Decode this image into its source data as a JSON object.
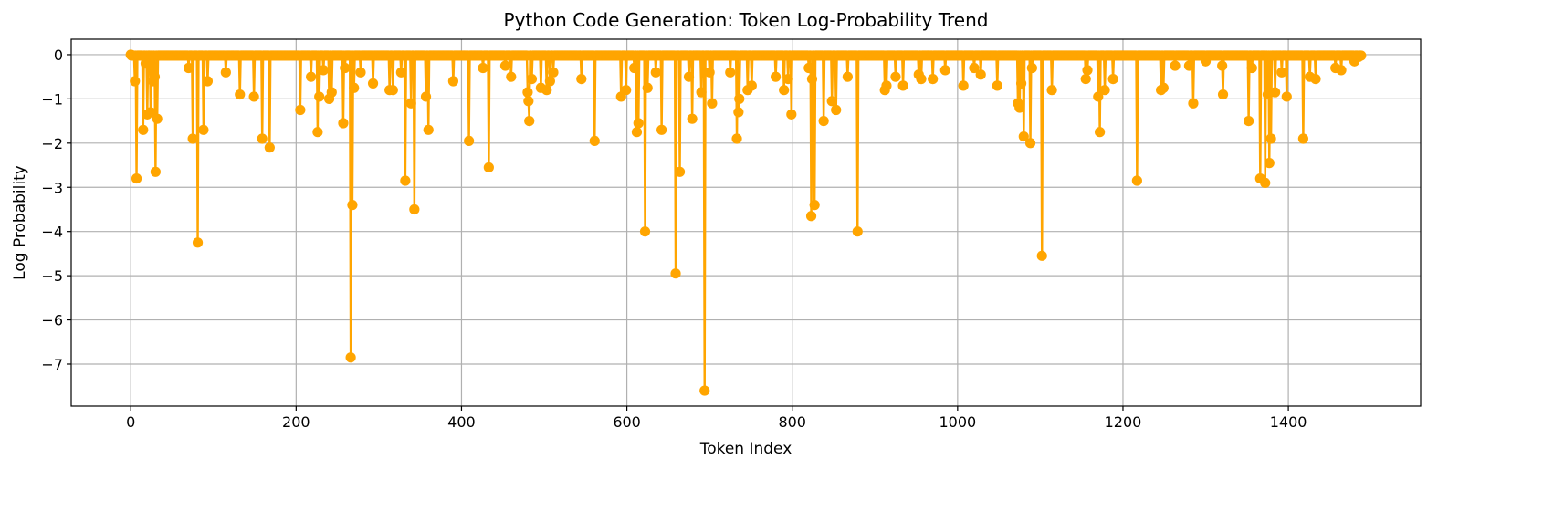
{
  "chart_data": {
    "type": "line",
    "title": "Python Code Generation: Token Log-Probability Trend",
    "xlabel": "Token Index",
    "ylabel": "Log Probability",
    "xlim": [
      -72,
      1560
    ],
    "ylim": [
      -7.95,
      0.35
    ],
    "xticks": [
      0,
      200,
      400,
      600,
      800,
      1000,
      1200,
      1400
    ],
    "yticks": [
      0,
      -1,
      -2,
      -3,
      -4,
      -5,
      -6,
      -7
    ],
    "xtick_labels": [
      "0",
      "200",
      "400",
      "600",
      "800",
      "1000",
      "1200",
      "1400"
    ],
    "ytick_labels": [
      "0",
      "−1",
      "−2",
      "−3",
      "−4",
      "−5",
      "−6",
      "−7"
    ],
    "grid": true,
    "n_tokens": 1489,
    "baseline": -0.02,
    "markers": "circle",
    "series": [
      {
        "color": "#FFA500",
        "dips": [
          [
            5,
            -0.6
          ],
          [
            7,
            -2.8
          ],
          [
            15,
            -1.7
          ],
          [
            18,
            -0.2
          ],
          [
            20,
            -1.35
          ],
          [
            24,
            -1.3
          ],
          [
            27,
            -0.6
          ],
          [
            29,
            -0.5
          ],
          [
            30,
            -2.65
          ],
          [
            32,
            -1.45
          ],
          [
            70,
            -0.3
          ],
          [
            75,
            -1.9
          ],
          [
            81,
            -4.25
          ],
          [
            88,
            -1.7
          ],
          [
            93,
            -0.6
          ],
          [
            115,
            -0.4
          ],
          [
            132,
            -0.9
          ],
          [
            149,
            -0.95
          ],
          [
            159,
            -1.9
          ],
          [
            168,
            -2.1
          ],
          [
            205,
            -1.25
          ],
          [
            218,
            -0.5
          ],
          [
            226,
            -1.75
          ],
          [
            228,
            -0.95
          ],
          [
            233,
            -0.35
          ],
          [
            240,
            -1.0
          ],
          [
            243,
            -0.85
          ],
          [
            257,
            -1.55
          ],
          [
            259,
            -0.3
          ],
          [
            266,
            -6.85
          ],
          [
            268,
            -3.4
          ],
          [
            270,
            -0.75
          ],
          [
            278,
            -0.4
          ],
          [
            293,
            -0.65
          ],
          [
            313,
            -0.8
          ],
          [
            317,
            -0.8
          ],
          [
            327,
            -0.4
          ],
          [
            332,
            -2.85
          ],
          [
            339,
            -1.1
          ],
          [
            343,
            -3.5
          ],
          [
            357,
            -0.95
          ],
          [
            360,
            -1.7
          ],
          [
            390,
            -0.6
          ],
          [
            409,
            -1.95
          ],
          [
            426,
            -0.3
          ],
          [
            433,
            -2.55
          ],
          [
            453,
            -0.25
          ],
          [
            460,
            -0.5
          ],
          [
            480,
            -0.85
          ],
          [
            481,
            -1.05
          ],
          [
            482,
            -1.5
          ],
          [
            485,
            -0.55
          ],
          [
            496,
            -0.75
          ],
          [
            503,
            -0.8
          ],
          [
            507,
            -0.6
          ],
          [
            511,
            -0.4
          ],
          [
            545,
            -0.55
          ],
          [
            561,
            -1.95
          ],
          [
            593,
            -0.95
          ],
          [
            599,
            -0.8
          ],
          [
            609,
            -0.3
          ],
          [
            612,
            -1.75
          ],
          [
            614,
            -1.55
          ],
          [
            622,
            -4.0
          ],
          [
            625,
            -0.75
          ],
          [
            635,
            -0.4
          ],
          [
            642,
            -1.7
          ],
          [
            659,
            -4.95
          ],
          [
            664,
            -2.65
          ],
          [
            675,
            -0.5
          ],
          [
            679,
            -1.45
          ],
          [
            690,
            -0.85
          ],
          [
            694,
            -7.6
          ],
          [
            700,
            -0.4
          ],
          [
            703,
            -1.1
          ],
          [
            725,
            -0.4
          ],
          [
            733,
            -1.9
          ],
          [
            735,
            -1.3
          ],
          [
            736,
            -1.0
          ],
          [
            746,
            -0.8
          ],
          [
            751,
            -0.7
          ],
          [
            780,
            -0.5
          ],
          [
            790,
            -0.8
          ],
          [
            795,
            -0.55
          ],
          [
            799,
            -1.35
          ],
          [
            820,
            -0.3
          ],
          [
            823,
            -3.65
          ],
          [
            824,
            -0.55
          ],
          [
            827,
            -3.4
          ],
          [
            838,
            -1.5
          ],
          [
            848,
            -1.05
          ],
          [
            853,
            -1.25
          ],
          [
            867,
            -0.5
          ],
          [
            879,
            -4.0
          ],
          [
            912,
            -0.8
          ],
          [
            914,
            -0.7
          ],
          [
            925,
            -0.5
          ],
          [
            934,
            -0.7
          ],
          [
            953,
            -0.45
          ],
          [
            956,
            -0.55
          ],
          [
            970,
            -0.55
          ],
          [
            985,
            -0.35
          ],
          [
            1007,
            -0.7
          ],
          [
            1020,
            -0.3
          ],
          [
            1028,
            -0.45
          ],
          [
            1048,
            -0.7
          ],
          [
            1073,
            -1.1
          ],
          [
            1075,
            -1.2
          ],
          [
            1077,
            -0.65
          ],
          [
            1080,
            -1.85
          ],
          [
            1088,
            -2.0
          ],
          [
            1090,
            -0.3
          ],
          [
            1102,
            -4.55
          ],
          [
            1114,
            -0.8
          ],
          [
            1155,
            -0.55
          ],
          [
            1157,
            -0.35
          ],
          [
            1170,
            -0.95
          ],
          [
            1172,
            -1.75
          ],
          [
            1178,
            -0.8
          ],
          [
            1188,
            -0.55
          ],
          [
            1217,
            -2.85
          ],
          [
            1246,
            -0.8
          ],
          [
            1249,
            -0.75
          ],
          [
            1263,
            -0.25
          ],
          [
            1280,
            -0.25
          ],
          [
            1285,
            -1.1
          ],
          [
            1300,
            -0.15
          ],
          [
            1320,
            -0.25
          ],
          [
            1321,
            -0.9
          ],
          [
            1352,
            -1.5
          ],
          [
            1356,
            -0.3
          ],
          [
            1366,
            -2.8
          ],
          [
            1372,
            -2.9
          ],
          [
            1375,
            -0.9
          ],
          [
            1377,
            -2.45
          ],
          [
            1379,
            -1.9
          ],
          [
            1384,
            -0.85
          ],
          [
            1392,
            -0.4
          ],
          [
            1398,
            -0.95
          ],
          [
            1418,
            -1.9
          ],
          [
            1426,
            -0.5
          ],
          [
            1433,
            -0.55
          ],
          [
            1457,
            -0.3
          ],
          [
            1464,
            -0.35
          ],
          [
            1480,
            -0.15
          ],
          [
            1485,
            -0.05
          ]
        ]
      }
    ]
  }
}
